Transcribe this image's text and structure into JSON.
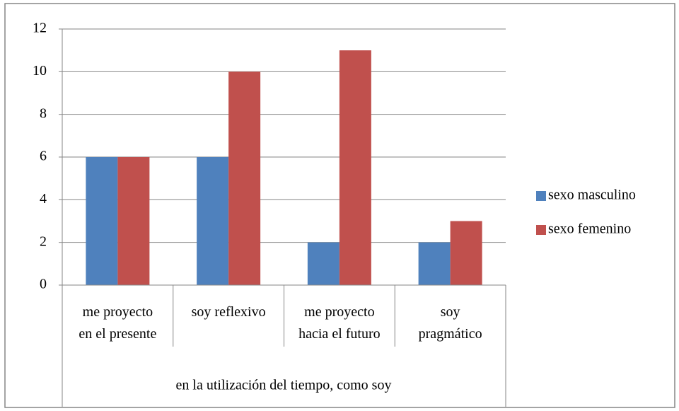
{
  "chart_data": {
    "type": "bar",
    "categories": [
      [
        "me proyecto",
        "en el presente"
      ],
      [
        "soy reflexivo"
      ],
      [
        "me proyecto",
        "hacia el futuro"
      ],
      [
        "soy",
        "pragmático"
      ]
    ],
    "xlabel": "en la utilización del tiempo, como soy",
    "series": [
      {
        "name": "sexo masculino",
        "color": "#4f81bd",
        "values": [
          6,
          6,
          2,
          2
        ]
      },
      {
        "name": "sexo femenino",
        "color": "#c0504d",
        "values": [
          6,
          10,
          11,
          3
        ]
      }
    ],
    "ylim": [
      0,
      12
    ],
    "yticks": [
      0,
      2,
      4,
      6,
      8,
      10,
      12
    ],
    "grid": true,
    "legend": "right"
  }
}
